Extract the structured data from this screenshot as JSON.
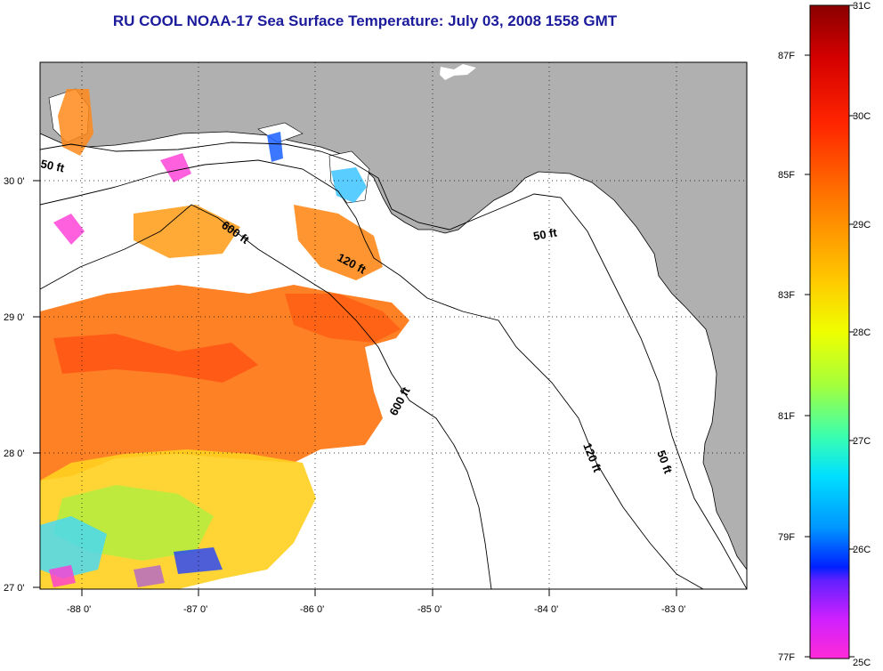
{
  "title": "RU COOL  NOAA-17  Sea Surface Temperature:  July 03, 2008 1558 GMT",
  "map": {
    "lon_labels": [
      "-88 0'",
      "-87 0'",
      "-86 0'",
      "-85 0'",
      "-84 0'",
      "-83 0'"
    ],
    "lat_labels": [
      "30 0'",
      "29 0'",
      "28 0'",
      "27 0'"
    ],
    "contour_labels": [
      "50 ft",
      "600 ft",
      "120 ft",
      "50 ft",
      "600 ft",
      "120 ft",
      "50 ft"
    ]
  },
  "colorbar": {
    "celsius_labels": [
      "31C",
      "30C",
      "29C",
      "28C",
      "27C",
      "26C",
      "25C"
    ],
    "fahrenheit_labels": [
      "87F",
      "85F",
      "83F",
      "81F",
      "79F",
      "77F"
    ]
  },
  "colors": {
    "title": "#1b1b9c",
    "land": "#b0b0b0",
    "no_data": "#ffffff"
  }
}
